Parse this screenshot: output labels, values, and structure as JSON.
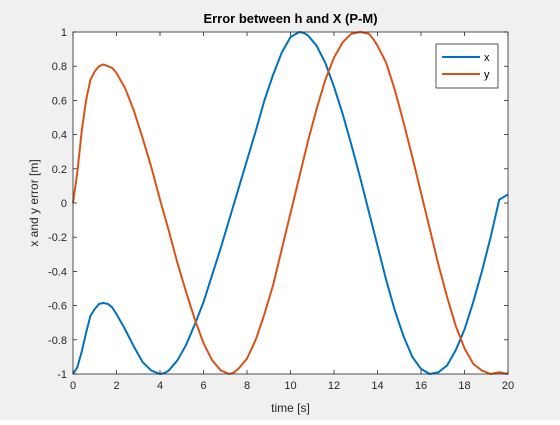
{
  "chart_data": {
    "type": "line",
    "title": "Error between h and X (P-M)",
    "xlabel": "time [s]",
    "ylabel": "x and y error [m]",
    "xlim": [
      0,
      20
    ],
    "ylim": [
      -1,
      1
    ],
    "xticks": [
      0,
      2,
      4,
      6,
      8,
      10,
      12,
      14,
      16,
      18,
      20
    ],
    "yticks": [
      -1,
      -0.8,
      -0.6,
      -0.4,
      -0.2,
      0,
      0.2,
      0.4,
      0.6,
      0.8,
      1
    ],
    "xtick_labels": [
      "0",
      "2",
      "4",
      "6",
      "8",
      "10",
      "12",
      "14",
      "16",
      "18",
      "20"
    ],
    "ytick_labels": [
      "-1",
      "-0.8",
      "-0.6",
      "-0.4",
      "-0.2",
      "0",
      "0.2",
      "0.4",
      "0.6",
      "0.8",
      "1"
    ],
    "grid": false,
    "legend_position": "top-right",
    "series": [
      {
        "name": "x",
        "color": "#0072bd",
        "x": [
          0,
          0.2,
          0.4,
          0.6,
          0.8,
          1.0,
          1.2,
          1.4,
          1.6,
          1.8,
          2.0,
          2.4,
          2.8,
          3.2,
          3.6,
          4.0,
          4.2,
          4.4,
          4.8,
          5.2,
          5.6,
          6.0,
          6.4,
          6.8,
          7.2,
          7.6,
          8.0,
          8.4,
          8.8,
          9.2,
          9.6,
          10.0,
          10.4,
          10.6,
          10.8,
          11.2,
          11.6,
          12.0,
          12.4,
          12.8,
          13.2,
          13.6,
          14.0,
          14.4,
          14.8,
          15.2,
          15.6,
          16.0,
          16.4,
          16.8,
          17.2,
          17.6,
          18.0,
          18.4,
          18.8,
          19.2,
          19.6,
          20.0
        ],
        "y": [
          -1.0,
          -0.96,
          -0.87,
          -0.76,
          -0.66,
          -0.62,
          -0.59,
          -0.585,
          -0.59,
          -0.61,
          -0.65,
          -0.74,
          -0.84,
          -0.93,
          -0.98,
          -1.0,
          -0.995,
          -0.98,
          -0.92,
          -0.83,
          -0.71,
          -0.58,
          -0.42,
          -0.26,
          -0.09,
          0.08,
          0.25,
          0.42,
          0.6,
          0.75,
          0.88,
          0.97,
          1.0,
          0.995,
          0.98,
          0.92,
          0.82,
          0.68,
          0.52,
          0.34,
          0.15,
          -0.05,
          -0.25,
          -0.45,
          -0.63,
          -0.78,
          -0.9,
          -0.97,
          -1.0,
          -0.99,
          -0.95,
          -0.86,
          -0.74,
          -0.58,
          -0.4,
          -0.2,
          0.02,
          0.05
        ]
      },
      {
        "name": "y",
        "color": "#d95319",
        "x": [
          0,
          0.2,
          0.4,
          0.6,
          0.8,
          1.0,
          1.2,
          1.4,
          1.6,
          1.8,
          2.0,
          2.4,
          2.8,
          3.2,
          3.6,
          4.0,
          4.4,
          4.8,
          5.2,
          5.6,
          6.0,
          6.4,
          6.8,
          7.2,
          7.4,
          7.6,
          8.0,
          8.4,
          8.8,
          9.2,
          9.6,
          10.0,
          10.4,
          10.8,
          11.2,
          11.6,
          12.0,
          12.4,
          12.8,
          13.2,
          13.6,
          13.8,
          14.0,
          14.4,
          14.8,
          15.2,
          15.6,
          16.0,
          16.4,
          16.8,
          17.2,
          17.6,
          18.0,
          18.4,
          18.8,
          19.2,
          19.6,
          20.0
        ],
        "y": [
          0.0,
          0.18,
          0.42,
          0.6,
          0.72,
          0.77,
          0.8,
          0.81,
          0.8,
          0.79,
          0.76,
          0.67,
          0.54,
          0.38,
          0.21,
          0.02,
          -0.16,
          -0.35,
          -0.52,
          -0.68,
          -0.82,
          -0.92,
          -0.98,
          -1.0,
          -0.99,
          -0.97,
          -0.91,
          -0.8,
          -0.65,
          -0.48,
          -0.27,
          -0.06,
          0.15,
          0.36,
          0.55,
          0.72,
          0.85,
          0.94,
          0.99,
          1.0,
          0.99,
          0.96,
          0.92,
          0.82,
          0.66,
          0.47,
          0.27,
          0.06,
          -0.15,
          -0.36,
          -0.55,
          -0.72,
          -0.85,
          -0.94,
          -0.98,
          -1.0,
          -0.99,
          -1.0
        ]
      }
    ]
  }
}
